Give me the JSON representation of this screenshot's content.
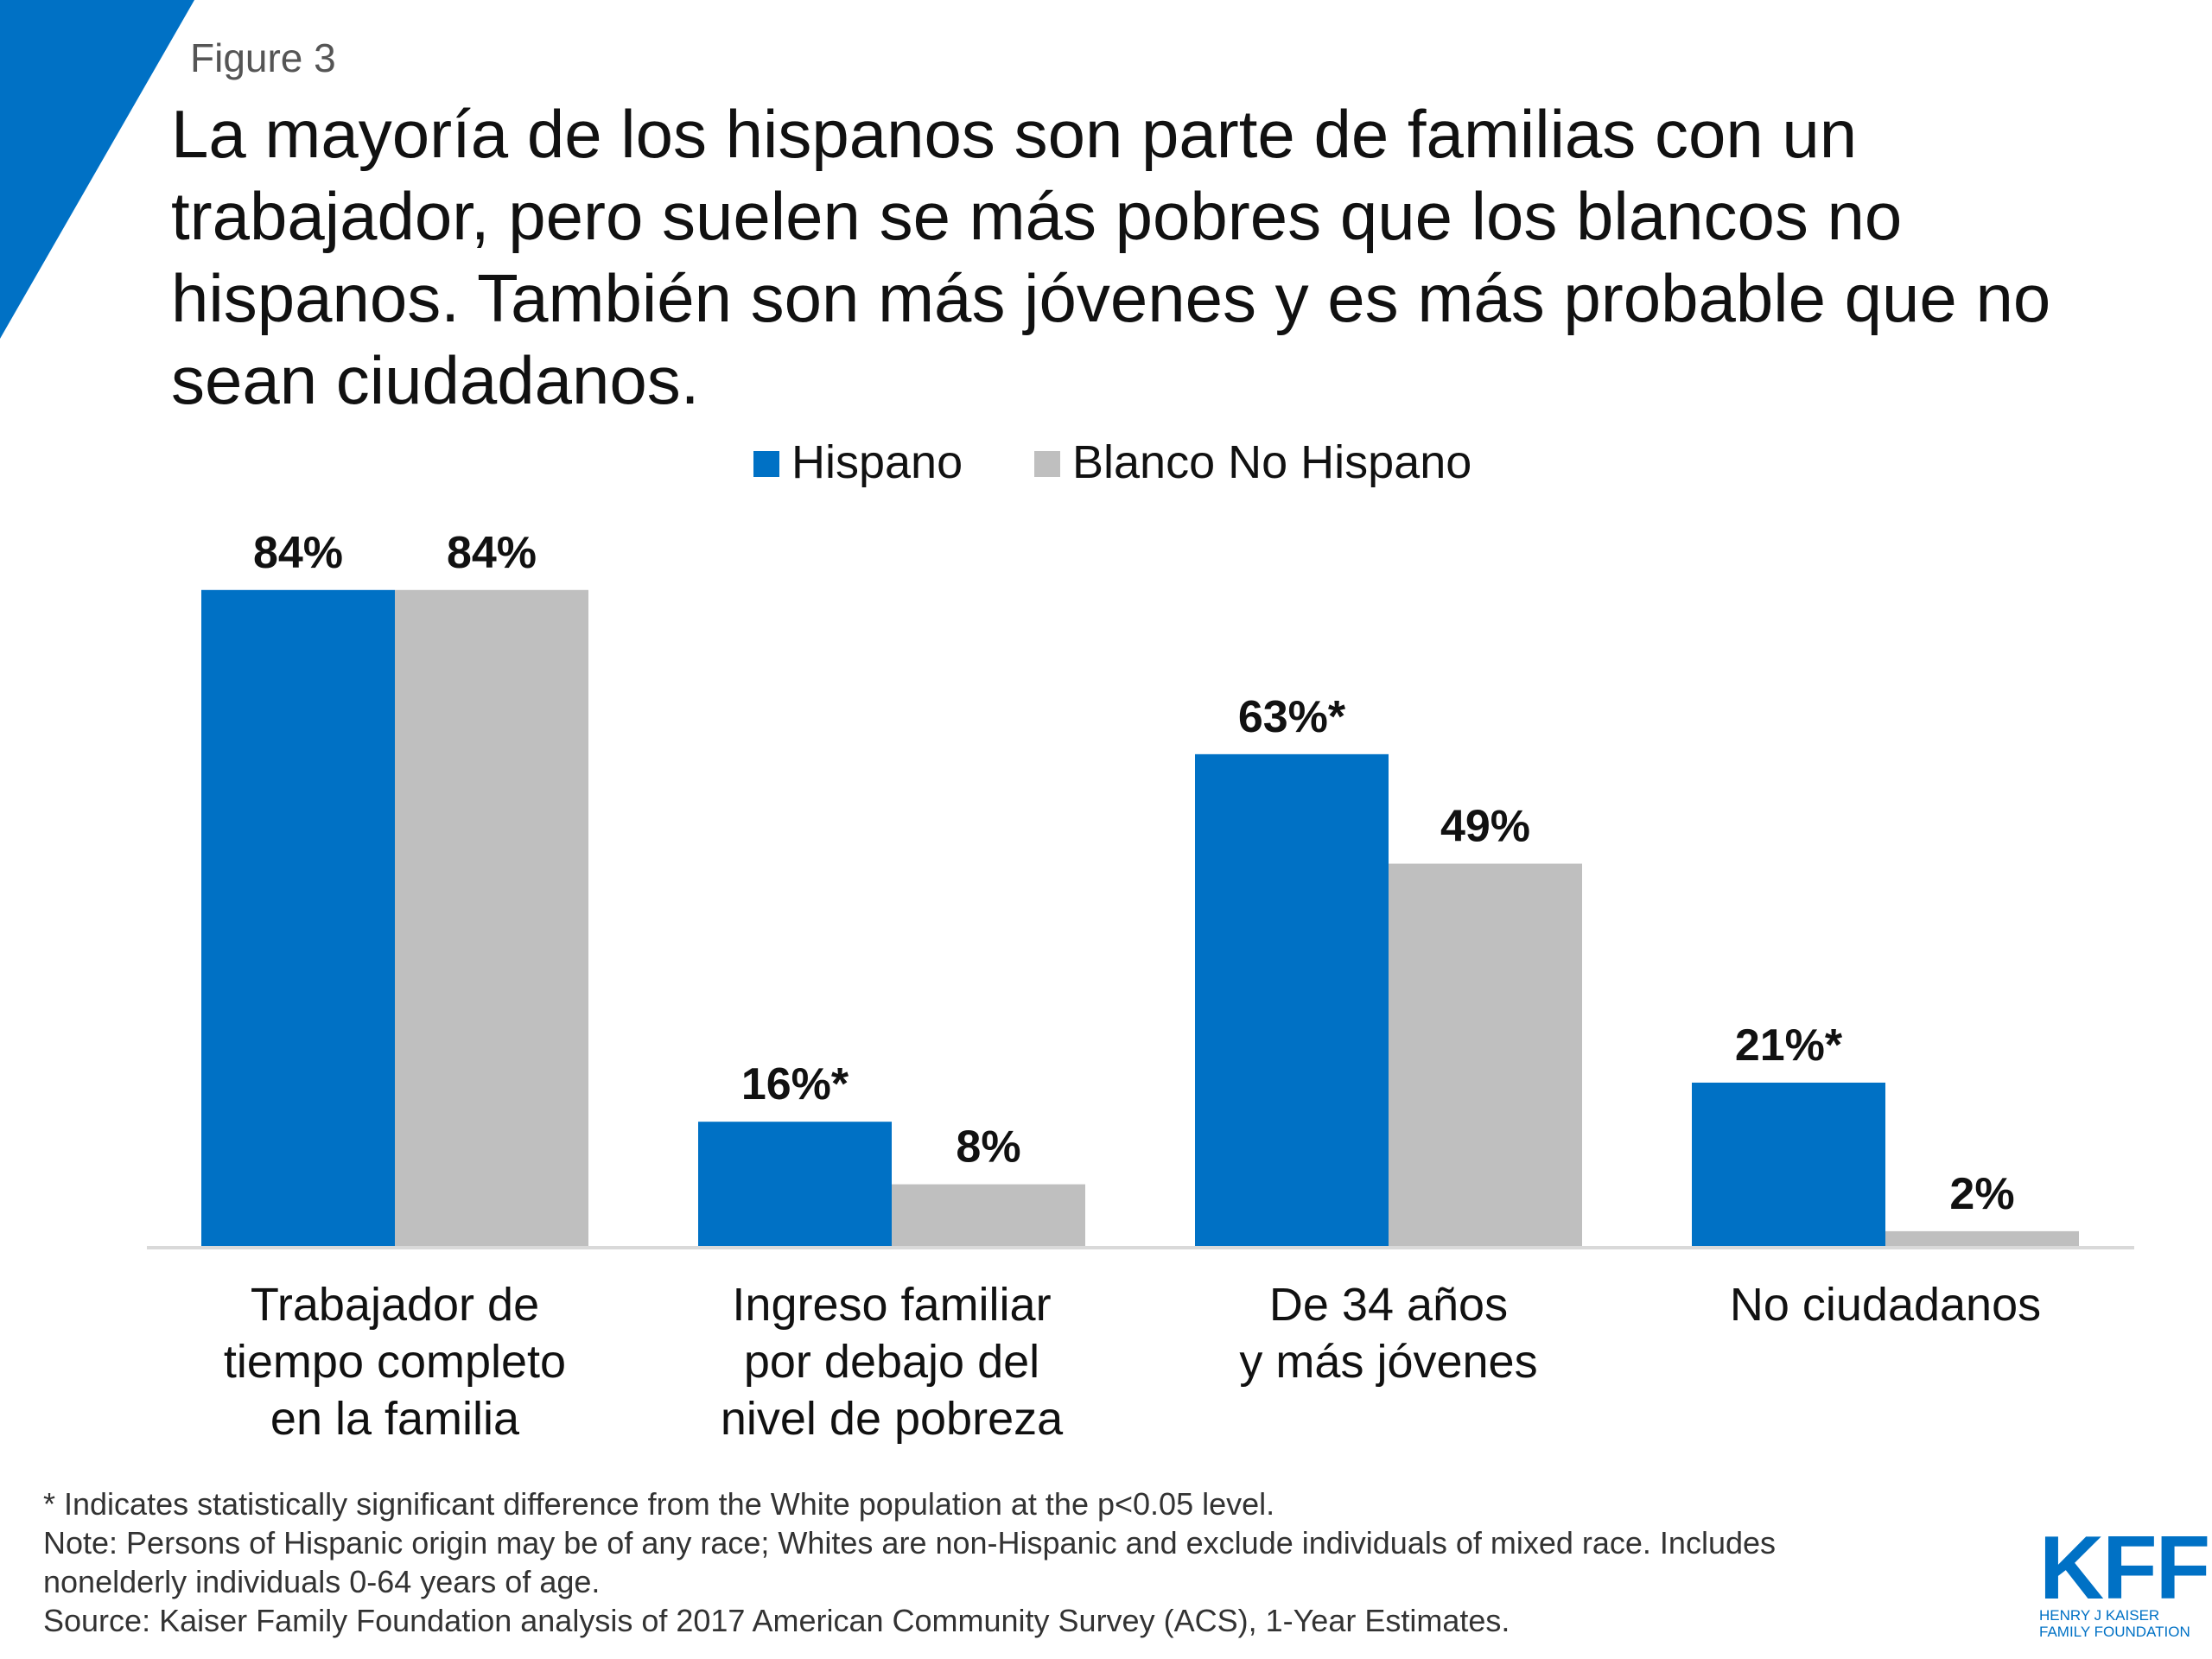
{
  "figure_label": "Figure 3",
  "title_lines": [
    "La mayoría de los hispanos son parte de familias con un",
    "trabajador, pero suelen se más pobres que los blancos no",
    "hispanos. También son más jóvenes y es más probable que no",
    "sean ciudadanos."
  ],
  "colors": {
    "accent": "#0071c5",
    "hispano": "#0071c5",
    "blanco": "#bfbfbf",
    "axis": "#d9d9d9"
  },
  "chart_data": {
    "type": "bar",
    "categories": [
      [
        "Trabajador de",
        "tiempo completo",
        "en la familia"
      ],
      [
        "Ingreso familiar",
        "por debajo del",
        "nivel de pobreza"
      ],
      [
        "De 34 años",
        "y más jóvenes"
      ],
      [
        "No ciudadanos"
      ]
    ],
    "series": [
      {
        "name": "Hispano",
        "values": [
          84,
          16,
          63,
          21
        ],
        "labels": [
          "84%",
          "16%*",
          "63%*",
          "21%*"
        ]
      },
      {
        "name": "Blanco No Hispano",
        "values": [
          84,
          8,
          49,
          2
        ],
        "labels": [
          "84%",
          "8%",
          "49%",
          "2%"
        ]
      }
    ],
    "ylim": [
      0,
      100
    ],
    "legend_position": "top-center",
    "grid": false
  },
  "footnotes": [
    "* Indicates statistically significant difference from the White population at the p<0.05 level.",
    "Note: Persons of Hispanic origin may be of any race; Whites are non-Hispanic and exclude individuals of mixed race. Includes",
    "nonelderly individuals 0-64 years of age.",
    "Source: Kaiser Family Foundation analysis of 2017 American Community Survey (ACS), 1-Year Estimates."
  ],
  "logo": {
    "word": "KFF",
    "sub_lines": [
      "HENRY J KAISER",
      "FAMILY FOUNDATION"
    ]
  }
}
